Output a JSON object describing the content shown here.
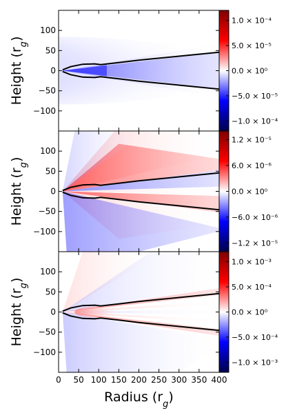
{
  "figure": {
    "colormap_colors": [
      "#00004c",
      "#0000ff",
      "#ffffff",
      "#ff0000",
      "#7f0000"
    ]
  },
  "chart_data": [
    {
      "type": "heatmap",
      "panel": "top",
      "xlabel": "",
      "ylabel": "Height (r_g)",
      "xlim": [
        0,
        400
      ],
      "ylim": [
        -150,
        150
      ],
      "x_ticks": [],
      "y_ticks": [
        100,
        50,
        0,
        -50,
        -100
      ],
      "colorbar": {
        "range": [
          -0.00012,
          0.00012
        ],
        "tick_values": [
          0.0001,
          5e-05,
          0,
          -5e-05,
          -0.0001
        ],
        "tick_labels": [
          "1.0 × 10⁻⁴",
          "5.0 × 10⁻⁵",
          "0.0 × 10⁰",
          "−5.0 × 10⁻⁵",
          "−1.0 × 10⁻⁴"
        ]
      },
      "field_description": "negative (blue) lobe spanning radius 10–400, strongest near the disk surface",
      "boundary_curves": {
        "upper": [
          [
            10,
            2
          ],
          [
            30,
            10
          ],
          [
            60,
            16
          ],
          [
            90,
            17
          ],
          [
            105,
            15
          ],
          [
            150,
            20
          ],
          [
            200,
            26
          ],
          [
            250,
            31
          ],
          [
            300,
            36
          ],
          [
            350,
            41
          ],
          [
            400,
            46
          ]
        ],
        "lower": [
          [
            10,
            -2
          ],
          [
            30,
            -10
          ],
          [
            60,
            -16
          ],
          [
            90,
            -17
          ],
          [
            105,
            -15
          ],
          [
            150,
            -20
          ],
          [
            200,
            -26
          ],
          [
            250,
            -31
          ],
          [
            300,
            -36
          ],
          [
            350,
            -41
          ],
          [
            400,
            -46
          ]
        ]
      }
    },
    {
      "type": "heatmap",
      "panel": "middle",
      "xlabel": "",
      "ylabel": "Height (r_g)",
      "xlim": [
        0,
        400
      ],
      "ylim": [
        -150,
        150
      ],
      "x_ticks": [],
      "y_ticks": [
        100,
        50,
        0,
        -50,
        -100
      ],
      "colorbar": {
        "range": [
          -1.4e-05,
          1.4e-05
        ],
        "tick_values": [
          1.2e-05,
          6e-06,
          0,
          -6e-06,
          -1.2e-05
        ],
        "tick_labels": [
          "1.2 × 10⁻⁵",
          "6.0 × 10⁻⁶",
          "0.0 × 10⁰",
          "−6.0 × 10⁻⁶",
          "−1.2 × 10⁻⁵"
        ]
      },
      "field_description": "antisymmetric: red above / blue inside upper cone, blue below / red inside lower cone",
      "boundary_curves": {
        "upper": [
          [
            10,
            2
          ],
          [
            30,
            10
          ],
          [
            60,
            16
          ],
          [
            90,
            17
          ],
          [
            105,
            15
          ],
          [
            150,
            20
          ],
          [
            200,
            26
          ],
          [
            250,
            31
          ],
          [
            300,
            36
          ],
          [
            350,
            41
          ],
          [
            400,
            46
          ]
        ],
        "lower": [
          [
            10,
            -2
          ],
          [
            30,
            -10
          ],
          [
            60,
            -16
          ],
          [
            90,
            -17
          ],
          [
            105,
            -15
          ],
          [
            150,
            -20
          ],
          [
            200,
            -26
          ],
          [
            250,
            -31
          ],
          [
            300,
            -36
          ],
          [
            350,
            -41
          ],
          [
            400,
            -46
          ]
        ]
      }
    },
    {
      "type": "heatmap",
      "panel": "bottom",
      "xlabel": "Radius (r_g)",
      "ylabel": "Height (r_g)",
      "xlim": [
        0,
        400
      ],
      "ylim": [
        -150,
        150
      ],
      "x_ticks": [
        0,
        50,
        100,
        150,
        200,
        250,
        300,
        350,
        400
      ],
      "y_ticks": [
        100,
        50,
        0,
        -50,
        -100
      ],
      "colorbar": {
        "range": [
          -0.0012,
          0.0012
        ],
        "tick_values": [
          0.001,
          0.0005,
          0,
          -0.0005,
          -0.001
        ],
        "tick_labels": [
          "1.0 × 10⁻³",
          "5.0 × 10⁻⁴",
          "0.0 × 10⁰",
          "−5.0 × 10⁻⁴",
          "−1.0 × 10⁻³"
        ]
      },
      "field_description": "mostly weak; red streaks along disk surface, blue regions above/below",
      "boundary_curves": {
        "upper": [
          [
            10,
            2
          ],
          [
            30,
            10
          ],
          [
            60,
            16
          ],
          [
            90,
            17
          ],
          [
            105,
            15
          ],
          [
            150,
            20
          ],
          [
            200,
            26
          ],
          [
            250,
            31
          ],
          [
            300,
            36
          ],
          [
            350,
            41
          ],
          [
            400,
            46
          ]
        ],
        "lower": [
          [
            10,
            -2
          ],
          [
            30,
            -10
          ],
          [
            60,
            -16
          ],
          [
            90,
            -17
          ],
          [
            105,
            -15
          ],
          [
            150,
            -20
          ],
          [
            200,
            -26
          ],
          [
            250,
            -31
          ],
          [
            300,
            -36
          ],
          [
            350,
            -41
          ],
          [
            400,
            -46
          ]
        ]
      }
    }
  ]
}
